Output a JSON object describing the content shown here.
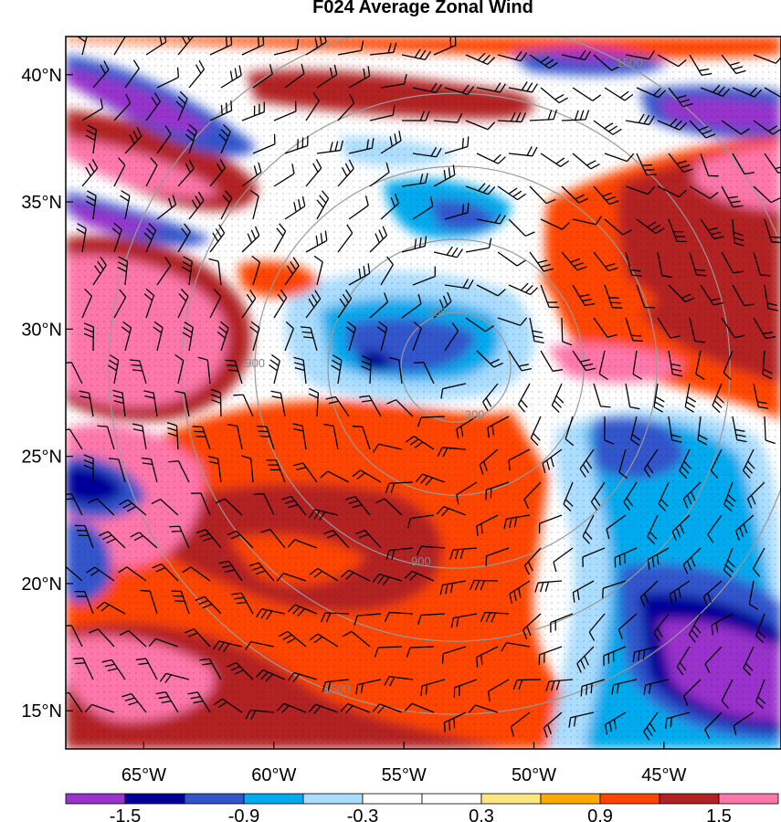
{
  "title": "F024 Average Zonal Wind",
  "map": {
    "lat_labels": [
      "40°N",
      "35°N",
      "30°N",
      "25°N",
      "20°N",
      "15°N"
    ],
    "lat_values": [
      40,
      35,
      30,
      25,
      20,
      15
    ],
    "lon_labels": [
      "65°W",
      "60°W",
      "55°W",
      "50°W",
      "45°W"
    ],
    "lon_values": [
      -65,
      -60,
      -55,
      -50,
      -45
    ],
    "lat_range": [
      13.5,
      41.5
    ],
    "lon_range": [
      -68,
      -40.5
    ],
    "range_ring_labels": [
      "300",
      "900",
      "1500"
    ],
    "range_ring_center": {
      "lon": -53,
      "lat": 28.5
    }
  },
  "colorbar": {
    "colors": [
      "#9933cc",
      "#000099",
      "#3355cc",
      "#00aaee",
      "#aaddff",
      "#ffffff",
      "#ffffff",
      "#ffe680",
      "#ffaa00",
      "#ff4400",
      "#b22222",
      "#ff77aa"
    ],
    "tick_labels": [
      "-1.5",
      "-0.9",
      "-0.3",
      "0.3",
      "0.9",
      "1.5"
    ]
  },
  "style": {
    "ring_color": "#999999",
    "barb_color": "#000000"
  }
}
